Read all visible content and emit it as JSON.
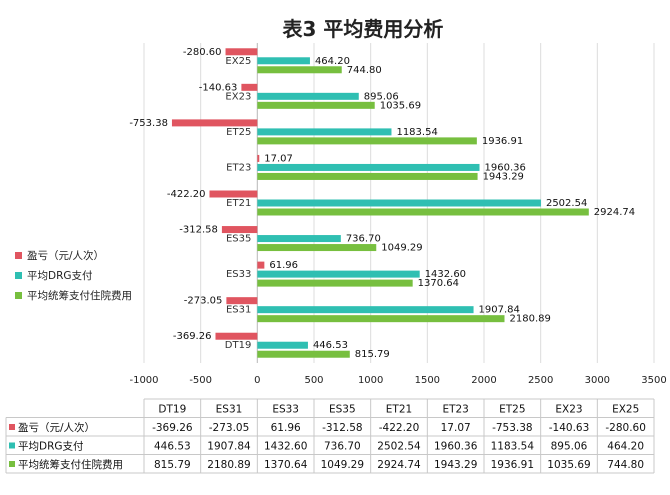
{
  "chart_data": {
    "type": "bar",
    "orientation": "horizontal",
    "title": "表3 平均费用分析",
    "categories": [
      "DT19",
      "ES31",
      "ES33",
      "ES35",
      "ET21",
      "ET23",
      "ET25",
      "EX23",
      "EX25"
    ],
    "series": [
      {
        "name": "盈亏（元/人次）",
        "color": "#e05560",
        "values": [
          -369.26,
          -273.05,
          61.96,
          -312.58,
          -422.2,
          17.07,
          -753.38,
          -140.63,
          -280.6
        ],
        "labels": [
          "-369.26",
          "-273.05",
          "61.96",
          "-312.58",
          "-422.20",
          "17.07",
          "-753.38",
          "-140.63",
          "-280.60"
        ]
      },
      {
        "name": "平均DRG支付",
        "color": "#2fbfb2",
        "values": [
          446.53,
          1907.84,
          1432.6,
          736.7,
          2502.54,
          1960.36,
          1183.54,
          895.06,
          464.2
        ],
        "labels": [
          "446.53",
          "1907.84",
          "1432.60",
          "736.70",
          "2502.54",
          "1960.36",
          "1183.54",
          "895.06",
          "464.20"
        ]
      },
      {
        "name": "平均统筹支付住院费用",
        "color": "#77bf3f",
        "values": [
          815.79,
          2180.89,
          1370.64,
          1049.29,
          2924.74,
          1943.29,
          1936.91,
          1035.69,
          744.8
        ],
        "labels": [
          "815.79",
          "2180.89",
          "1370.64",
          "1049.29",
          "2924.74",
          "1943.29",
          "1936.91",
          "1035.69",
          "744.80"
        ]
      }
    ],
    "xlim": [
      -1000,
      3500
    ],
    "xticks": [
      -1000,
      -500,
      0,
      500,
      1000,
      1500,
      2000,
      2500,
      3000,
      3500
    ],
    "xtick_labels": [
      "-1000",
      "-500",
      "0",
      "500",
      "1000",
      "1500",
      "2000",
      "2500",
      "3000",
      "3500"
    ],
    "grid": true,
    "legend_position": "left",
    "data_table": true
  }
}
